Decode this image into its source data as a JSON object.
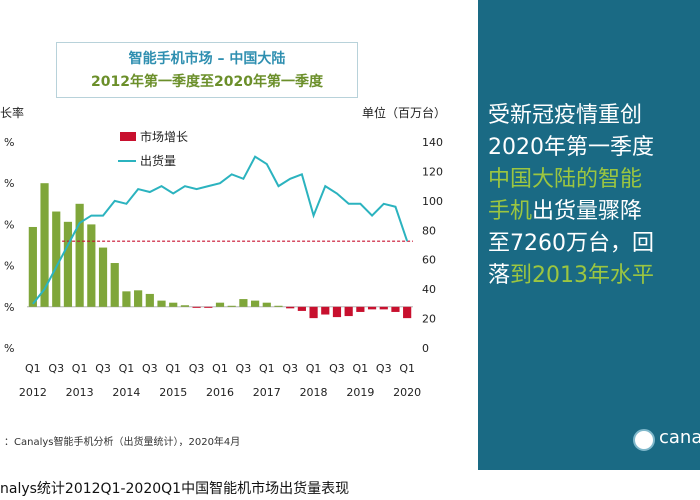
{
  "title": {
    "line1": "智能手机市场 – 中国大陆",
    "line2": "2012年第一季度至2020年第一季度"
  },
  "labels": {
    "left_axis": "长率",
    "right_axis": "单位（百万台）",
    "source": "：Canalys智能手机分析（出货量统计），2020年4月"
  },
  "right_panel": {
    "lines": [
      {
        "text": "受新冠疫情重创",
        "color": "white"
      },
      {
        "text": "2020年第一季度",
        "color": "white"
      },
      {
        "text": "中国大陆的智能",
        "color": "green"
      },
      {
        "text": "手机出货量骤降",
        "color": "mixed"
      },
      {
        "text": "至7260万台，回",
        "color": "white"
      },
      {
        "text": "落到2013年水平",
        "color": "mixed"
      }
    ],
    "logo_text": "cana"
  },
  "caption": "nalys统计2012Q1-2020Q1中国智能机市场出货量表现",
  "colors": {
    "bar_positive": "#7fa63a",
    "bar_negative": "#c8102e",
    "shipments_line": "#2bb3bf",
    "reference_line": "#c8102e",
    "panel_bg": "#1a6a84",
    "highlight_green": "#9cc640"
  },
  "chart_data": {
    "type": "bar+line",
    "title": "智能手机市场 – 中国大陆 2012年第一季度至2020年第一季度",
    "legend": [
      {
        "label": "市场增长",
        "type": "bar"
      },
      {
        "label": "出货量",
        "type": "line"
      }
    ],
    "legend_position": "top-left",
    "left_axis": {
      "ticks": [
        "%",
        "%",
        "%",
        "%",
        "%",
        "%"
      ]
    },
    "right_axis": {
      "label": "单位（百万台）",
      "ticks": [
        0,
        20,
        40,
        60,
        80,
        100,
        120,
        140
      ],
      "range": [
        0,
        140
      ]
    },
    "x_tick_labels": [
      "Q1",
      "Q3",
      "Q1",
      "Q3",
      "Q1",
      "Q3",
      "Q1",
      "Q3",
      "Q1",
      "Q3",
      "Q1",
      "Q3",
      "Q1",
      "Q3",
      "Q1",
      "Q3",
      "Q1"
    ],
    "x_year_labels": [
      "2012",
      "2013",
      "2014",
      "2015",
      "2016",
      "2017",
      "2018",
      "2019",
      "2020"
    ],
    "quarters": [
      "2012Q1",
      "2012Q2",
      "2012Q3",
      "2012Q4",
      "2013Q1",
      "2013Q2",
      "2013Q3",
      "2013Q4",
      "2014Q1",
      "2014Q2",
      "2014Q3",
      "2014Q4",
      "2015Q1",
      "2015Q2",
      "2015Q3",
      "2015Q4",
      "2016Q1",
      "2016Q2",
      "2016Q3",
      "2016Q4",
      "2017Q1",
      "2017Q2",
      "2017Q3",
      "2017Q4",
      "2018Q1",
      "2018Q2",
      "2018Q3",
      "2018Q4",
      "2019Q1",
      "2019Q2",
      "2019Q3",
      "2019Q4",
      "2020Q1"
    ],
    "growth_pct": [
      155,
      240,
      185,
      165,
      200,
      160,
      115,
      85,
      30,
      32,
      25,
      12,
      8,
      3,
      -2,
      -2,
      8,
      2,
      15,
      12,
      8,
      2,
      -3,
      -8,
      -22,
      -15,
      -20,
      -18,
      -10,
      -5,
      -5,
      -10,
      -22
    ],
    "growth_axis_range": [
      -80,
      320
    ],
    "shipments": [
      30,
      40,
      55,
      70,
      85,
      90,
      90,
      100,
      98,
      108,
      106,
      110,
      105,
      110,
      108,
      110,
      112,
      118,
      115,
      130,
      125,
      110,
      115,
      118,
      90,
      110,
      105,
      98,
      98,
      90,
      98,
      96,
      72.6
    ],
    "reference_line_value": 72.6
  }
}
